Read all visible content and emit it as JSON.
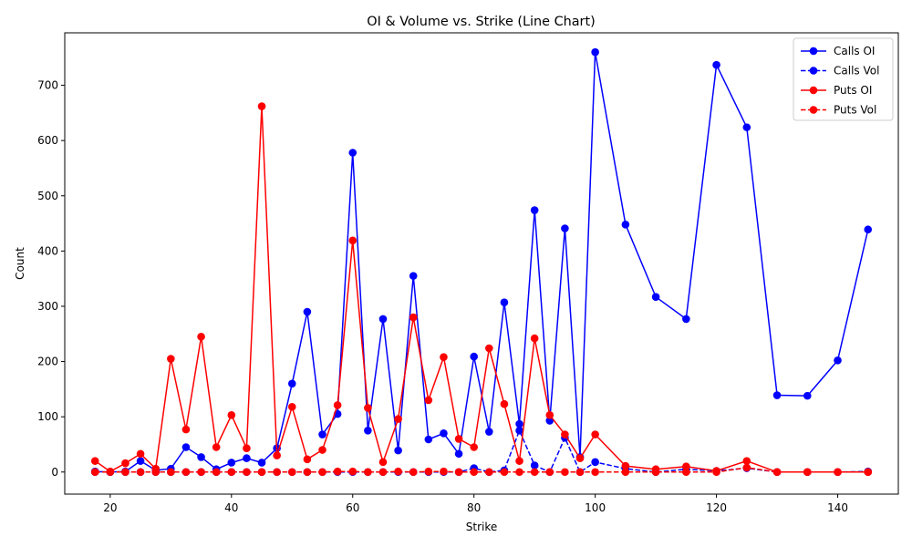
{
  "chart_data": {
    "type": "line",
    "title": "OI & Volume vs. Strike (Line Chart)",
    "xlabel": "Strike",
    "ylabel": "Count",
    "xlim": [
      12.5,
      150
    ],
    "ylim": [
      -40,
      795
    ],
    "xticks": [
      20,
      40,
      60,
      80,
      100,
      120,
      140
    ],
    "yticks": [
      0,
      100,
      200,
      300,
      400,
      500,
      600,
      700
    ],
    "legend_position": "top-right",
    "grid": false,
    "series": [
      {
        "name": "Calls OI",
        "color": "#0000ff",
        "linestyle": "solid",
        "marker": "circle",
        "x": [
          17.5,
          20,
          22.5,
          25,
          27.5,
          30,
          32.5,
          35,
          37.5,
          40,
          42.5,
          45,
          47.5,
          50,
          52.5,
          55,
          57.5,
          60,
          62.5,
          65,
          67.5,
          70,
          72.5,
          75,
          77.5,
          80,
          82.5,
          85,
          87.5,
          90,
          92.5,
          95,
          97.5,
          100,
          105,
          110,
          115,
          120,
          125,
          130,
          135,
          140,
          145
        ],
        "y": [
          1,
          0,
          1,
          20,
          3,
          6,
          45,
          27,
          5,
          17,
          25,
          17,
          43,
          160,
          290,
          68,
          105,
          578,
          75,
          277,
          39,
          355,
          59,
          70,
          33,
          209,
          73,
          307,
          87,
          474,
          93,
          441,
          27,
          760,
          448,
          317,
          277,
          737,
          624,
          139,
          138,
          202,
          439
        ]
      },
      {
        "name": "Calls Vol",
        "color": "#0000ff",
        "linestyle": "dashed",
        "marker": "circle",
        "x": [
          17.5,
          20,
          22.5,
          25,
          27.5,
          30,
          32.5,
          35,
          37.5,
          40,
          42.5,
          45,
          47.5,
          50,
          52.5,
          55,
          57.5,
          60,
          62.5,
          65,
          67.5,
          70,
          72.5,
          75,
          77.5,
          80,
          82.5,
          85,
          87.5,
          90,
          92.5,
          95,
          97.5,
          100,
          105,
          110,
          115,
          120,
          125,
          130,
          135,
          140,
          145
        ],
        "y": [
          0,
          0,
          0,
          0,
          0,
          0,
          0,
          0,
          0,
          0,
          0,
          0,
          0,
          0,
          0,
          0,
          0,
          0,
          0,
          0,
          0,
          0,
          0,
          0,
          0,
          7,
          0,
          3,
          75,
          12,
          0,
          62,
          0,
          18,
          6,
          0,
          5,
          2,
          7,
          0,
          0,
          0,
          1
        ]
      },
      {
        "name": "Puts OI",
        "color": "#ff0000",
        "linestyle": "solid",
        "marker": "circle",
        "x": [
          17.5,
          20,
          22.5,
          25,
          27.5,
          30,
          32.5,
          35,
          37.5,
          40,
          42.5,
          45,
          47.5,
          50,
          52.5,
          55,
          57.5,
          60,
          62.5,
          65,
          67.5,
          70,
          72.5,
          75,
          77.5,
          80,
          82.5,
          85,
          87.5,
          90,
          92.5,
          95,
          97.5,
          100,
          105,
          110,
          115,
          120,
          125,
          130,
          135,
          140,
          145
        ],
        "y": [
          20,
          1,
          16,
          33,
          6,
          205,
          77,
          245,
          45,
          103,
          43,
          662,
          30,
          118,
          23,
          40,
          121,
          419,
          116,
          18,
          96,
          280,
          130,
          208,
          60,
          45,
          224,
          123,
          20,
          242,
          103,
          68,
          25,
          68,
          11,
          5,
          10,
          2,
          20,
          0,
          0,
          0,
          0
        ]
      },
      {
        "name": "Puts Vol",
        "color": "#ff0000",
        "linestyle": "dashed",
        "marker": "circle",
        "x": [
          17.5,
          20,
          22.5,
          25,
          27.5,
          30,
          32.5,
          35,
          37.5,
          40,
          42.5,
          45,
          47.5,
          50,
          52.5,
          55,
          57.5,
          60,
          62.5,
          65,
          67.5,
          70,
          72.5,
          75,
          77.5,
          80,
          82.5,
          85,
          87.5,
          90,
          92.5,
          95,
          97.5,
          100,
          105,
          110,
          115,
          120,
          125,
          130,
          135,
          140,
          145
        ],
        "y": [
          0,
          0,
          0,
          0,
          0,
          0,
          0,
          0,
          0,
          0,
          0,
          0,
          0,
          0,
          0,
          0,
          1,
          1,
          0,
          0,
          1,
          0,
          1,
          1,
          0,
          0,
          0,
          0,
          0,
          0,
          0,
          0,
          0,
          0,
          0,
          0,
          0,
          0,
          8,
          0,
          0,
          0,
          0
        ]
      }
    ]
  }
}
